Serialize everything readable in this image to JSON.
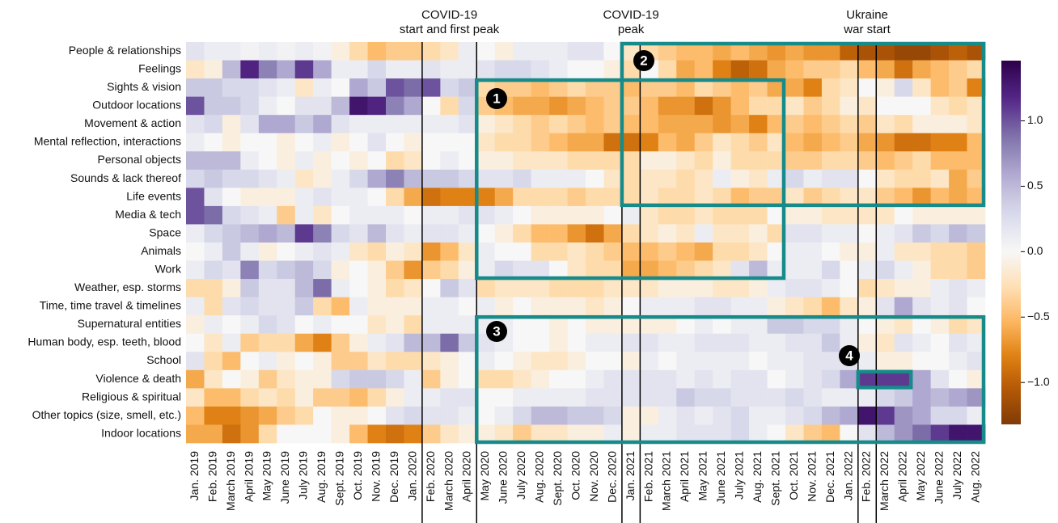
{
  "chart_data": {
    "type": "heatmap",
    "x_categories": [
      "Jan. 2019",
      "Feb. 2019",
      "March 2019",
      "April 2019",
      "May 2019",
      "June 2019",
      "July 2019",
      "Aug. 2019",
      "Sept. 2019",
      "Oct. 2019",
      "Nov. 2019",
      "Dec. 2019",
      "Jan. 2020",
      "Feb. 2020",
      "March 2020",
      "April 2020",
      "May 2020",
      "June 2020",
      "July 2020",
      "Aug. 2020",
      "Sept. 2020",
      "Oct. 2020",
      "Nov. 2020",
      "Dec. 2020",
      "Jan. 2021",
      "Feb. 2021",
      "March 2021",
      "April 2021",
      "May 2021",
      "June 2021",
      "July 2021",
      "Aug. 2021",
      "Sept. 2021",
      "Oct. 2021",
      "Nov. 2021",
      "Dec. 2021",
      "Jan. 2022",
      "Feb. 2022",
      "March 2022",
      "April 2022",
      "May 2022",
      "June 2022",
      "July 2022",
      "Aug. 2022"
    ],
    "y_categories": [
      "People & relationships",
      "Feelings",
      "Sights & vision",
      "Outdoor locations",
      "Movement & action",
      "Mental reflection, interactions",
      "Personal objects",
      "Sounds & lack thereof",
      "Life events",
      "Media & tech",
      "Space",
      "Animals",
      "Work",
      "Weather, esp. storms",
      "Time, time travel & timelines",
      "Supernatural entities",
      "Human body, esp. teeth, blood",
      "School",
      "Violence & death",
      "Religious & spiritual",
      "Other topics (size, smell, etc.)",
      "Indoor locations"
    ],
    "values": [
      [
        0.2,
        0.1,
        0.1,
        0.05,
        0.1,
        0.05,
        0.1,
        0.05,
        -0.1,
        -0.3,
        -0.5,
        -0.4,
        -0.4,
        -0.3,
        -0.2,
        0.1,
        0,
        -0.1,
        0.1,
        0.1,
        0.1,
        0.2,
        0.2,
        0,
        -0.2,
        -0.3,
        -0.4,
        -0.5,
        -0.5,
        -0.6,
        -0.5,
        -0.6,
        -0.7,
        -0.6,
        -0.7,
        -0.7,
        -1.0,
        -1.1,
        -1.1,
        -1.2,
        -1.2,
        -1.1,
        -1.0,
        -1.1
      ],
      [
        -0.2,
        -0.1,
        0.5,
        1.2,
        0.8,
        0.6,
        1.1,
        0.6,
        0.1,
        0.1,
        0.3,
        0.1,
        0.1,
        0.2,
        0.1,
        0.1,
        0.2,
        0.3,
        0.3,
        0.2,
        0.1,
        0,
        0,
        -0.1,
        -0.3,
        0,
        -0.3,
        -0.6,
        -0.5,
        -0.8,
        -1.0,
        -0.9,
        -0.6,
        -0.5,
        -0.4,
        -0.4,
        -0.3,
        -0.5,
        -0.6,
        -0.9,
        -0.6,
        -0.5,
        -0.4,
        -0.3
      ],
      [
        0.4,
        0.4,
        0.3,
        0.3,
        0.2,
        0.1,
        -0.2,
        0.1,
        0,
        0.6,
        0.4,
        1.0,
        0.9,
        1.0,
        0.3,
        0.4,
        -0.3,
        -0.4,
        -0.4,
        -0.5,
        -0.4,
        -0.3,
        -0.4,
        -0.4,
        -0.5,
        -0.4,
        -0.4,
        -0.5,
        -0.3,
        -0.4,
        -0.5,
        -0.4,
        -0.6,
        -0.6,
        -0.8,
        -0.3,
        -0.2,
        0,
        -0.1,
        0.3,
        -0.2,
        -0.5,
        -0.4,
        -0.8
      ],
      [
        1.0,
        0.4,
        0.4,
        0.3,
        0.1,
        0,
        0.2,
        0.2,
        0.5,
        1.3,
        1.2,
        0.8,
        0.6,
        0,
        -0.3,
        0.3,
        -0.4,
        -0.5,
        -0.6,
        -0.6,
        -0.7,
        -0.6,
        -0.5,
        -0.4,
        -0.4,
        -0.5,
        -0.7,
        -0.7,
        -0.9,
        -0.7,
        -0.5,
        -0.3,
        -0.3,
        -0.2,
        -0.4,
        -0.3,
        -0.1,
        -0.2,
        0,
        0,
        0,
        -0.2,
        -0.3,
        -0.2
      ],
      [
        0.2,
        0.3,
        -0.1,
        0.2,
        0.6,
        0.6,
        0.4,
        0.6,
        0.2,
        0.1,
        0.1,
        0.1,
        0.1,
        0.1,
        0.1,
        0.2,
        -0.1,
        -0.2,
        -0.3,
        -0.4,
        -0.3,
        -0.4,
        -0.5,
        -0.4,
        -0.5,
        -0.5,
        -0.6,
        -0.6,
        -0.6,
        -0.7,
        -0.6,
        -0.8,
        -0.5,
        -0.4,
        -0.5,
        -0.4,
        -0.3,
        -0.4,
        -0.2,
        -0.3,
        -0.1,
        -0.1,
        -0.1,
        -0.2
      ],
      [
        0.1,
        0,
        -0.1,
        0,
        0,
        -0.1,
        0,
        0.1,
        -0.1,
        0,
        0.2,
        0,
        -0.1,
        0,
        0,
        0,
        -0.2,
        -0.3,
        -0.3,
        -0.4,
        -0.5,
        -0.6,
        -0.6,
        -0.9,
        -0.9,
        -0.8,
        -0.5,
        -0.6,
        -0.4,
        -0.2,
        -0.3,
        -0.4,
        -0.2,
        -0.5,
        -0.6,
        -0.5,
        -0.4,
        -0.6,
        -0.7,
        -0.9,
        -0.9,
        -0.8,
        -0.8,
        -0.5
      ],
      [
        0.5,
        0.5,
        0.5,
        0.1,
        0,
        -0.1,
        0.1,
        -0.1,
        0,
        -0.1,
        0,
        -0.3,
        -0.2,
        0,
        0.1,
        0,
        -0.1,
        -0.1,
        -0.2,
        -0.2,
        -0.2,
        -0.3,
        -0.3,
        -0.3,
        -0.3,
        -0.1,
        -0.1,
        -0.2,
        -0.3,
        -0.1,
        -0.3,
        -0.3,
        -0.3,
        -0.4,
        -0.4,
        -0.3,
        -0.3,
        -0.4,
        -0.5,
        -0.4,
        -0.3,
        -0.5,
        -0.5,
        -0.5
      ],
      [
        0.3,
        0.4,
        0.3,
        0.3,
        0.2,
        0.1,
        -0.2,
        -0.1,
        0.1,
        0.3,
        0.6,
        0.8,
        0.5,
        0.4,
        0.4,
        0.3,
        0.2,
        0.2,
        0.3,
        0.1,
        0.1,
        0.1,
        0,
        -0.2,
        -0.3,
        -0.2,
        -0.2,
        -0.3,
        -0.2,
        0.1,
        -0.1,
        -0.2,
        0.1,
        0.3,
        0.1,
        0.2,
        0.2,
        0,
        -0.2,
        -0.3,
        -0.3,
        -0.2,
        -0.6,
        -0.4
      ],
      [
        1.0,
        0.2,
        0,
        -0.1,
        -0.1,
        -0.1,
        0.1,
        0.2,
        0.1,
        0.1,
        0,
        -0.3,
        -0.6,
        -0.9,
        -0.8,
        -0.8,
        -0.8,
        -0.6,
        -0.3,
        -0.3,
        -0.3,
        -0.4,
        -0.3,
        -0.3,
        -0.3,
        -0.2,
        -0.3,
        -0.3,
        -0.2,
        -0.3,
        -0.5,
        -0.4,
        -0.4,
        -0.2,
        -0.4,
        -0.3,
        -0.2,
        -0.2,
        -0.4,
        -0.5,
        -0.7,
        -0.5,
        -0.6,
        -0.5
      ],
      [
        1.0,
        0.9,
        0.3,
        0.2,
        0.1,
        -0.4,
        0.1,
        -0.2,
        0,
        0.1,
        0.1,
        0.1,
        0,
        0.1,
        0.1,
        0.2,
        0.2,
        0.1,
        0,
        -0.1,
        -0.1,
        -0.1,
        -0.1,
        0,
        0.1,
        -0.2,
        -0.3,
        -0.3,
        -0.2,
        -0.3,
        -0.3,
        -0.3,
        0,
        -0.1,
        -0.1,
        -0.2,
        -0.2,
        -0.2,
        -0.2,
        0,
        -0.1,
        -0.1,
        -0.1,
        -0.1
      ],
      [
        0.1,
        0.3,
        0.4,
        0.5,
        0.6,
        0.5,
        1.1,
        0.8,
        0.3,
        0.2,
        0.5,
        0.2,
        0.1,
        0.2,
        0.2,
        0.1,
        0,
        -0.1,
        -0.3,
        -0.5,
        -0.5,
        -0.7,
        -0.9,
        -0.6,
        -0.3,
        -0.2,
        -0.1,
        -0.2,
        0.1,
        -0.2,
        -0.2,
        -0.1,
        -0.3,
        0.2,
        0.2,
        0.1,
        0.1,
        0,
        0.1,
        0.2,
        0.4,
        0.3,
        0.5,
        0.4
      ],
      [
        0,
        0.1,
        0.4,
        0.1,
        -0.1,
        0,
        0.1,
        0.2,
        0.1,
        -0.2,
        -0.3,
        -0.1,
        -0.2,
        -0.7,
        -0.5,
        -0.2,
        0.1,
        0,
        0,
        -0.3,
        -0.3,
        -0.2,
        -0.3,
        -0.4,
        -0.5,
        -0.5,
        -0.4,
        -0.5,
        -0.6,
        -0.3,
        -0.3,
        -0.2,
        0,
        0.1,
        0.1,
        0,
        -0.1,
        -0.1,
        0.1,
        -0.2,
        -0.2,
        -0.3,
        -0.3,
        -0.4
      ],
      [
        0.1,
        0.3,
        0.2,
        0.8,
        0.3,
        0.4,
        0.5,
        0.3,
        -0.1,
        0,
        -0.1,
        -0.4,
        -0.7,
        -0.4,
        -0.3,
        -0.1,
        0.1,
        0.3,
        0.2,
        0.2,
        0,
        -0.2,
        -0.3,
        -0.3,
        -0.6,
        -0.6,
        -0.5,
        -0.4,
        -0.3,
        -0.2,
        0.2,
        0.5,
        0.1,
        0.1,
        0.1,
        0.3,
        0,
        0.1,
        0.3,
        0.1,
        -0.1,
        -0.3,
        -0.3,
        -0.4
      ],
      [
        -0.3,
        -0.3,
        -0.1,
        0.4,
        0.2,
        0.2,
        0.5,
        0.9,
        0.1,
        0,
        -0.1,
        -0.3,
        -0.2,
        0,
        0.4,
        0.2,
        -0.3,
        -0.2,
        -0.2,
        -0.2,
        -0.3,
        -0.3,
        -0.3,
        -0.2,
        -0.2,
        -0.2,
        -0.1,
        -0.1,
        -0.1,
        -0.2,
        -0.2,
        -0.1,
        0.1,
        0.2,
        0.2,
        0.1,
        0,
        -0.3,
        -0.2,
        -0.1,
        -0.1,
        0.1,
        0.2,
        0.1
      ],
      [
        0.1,
        -0.3,
        0.2,
        0.3,
        0.2,
        0.2,
        0.4,
        -0.3,
        -0.5,
        0.1,
        -0.1,
        -0.1,
        -0.1,
        0.1,
        0.1,
        0,
        0.1,
        -0.1,
        0,
        -0.1,
        -0.1,
        -0.1,
        -0.2,
        -0.1,
        0,
        0.1,
        0.1,
        0.1,
        0.2,
        0.2,
        0.1,
        0.1,
        -0.1,
        -0.2,
        -0.3,
        -0.5,
        -0.2,
        -0.1,
        0.2,
        0.6,
        0.2,
        0.1,
        0.2,
        0
      ],
      [
        -0.1,
        0.1,
        0,
        0.1,
        0.3,
        0.2,
        0,
        0.1,
        0,
        0,
        -0.2,
        -0.1,
        -0.3,
        0.1,
        0.1,
        0.1,
        0.1,
        0.1,
        0,
        0,
        -0.1,
        0,
        -0.1,
        -0.1,
        -0.1,
        -0.1,
        -0.1,
        0,
        0.1,
        0,
        0.1,
        0.1,
        0.4,
        0.4,
        0.3,
        0.3,
        0.1,
        0,
        -0.1,
        -0.2,
        0,
        -0.1,
        -0.3,
        -0.2
      ],
      [
        0,
        -0.2,
        0.1,
        -0.4,
        -0.3,
        -0.3,
        -0.6,
        -0.8,
        -0.4,
        -0.1,
        0.1,
        0.2,
        0.5,
        0.5,
        0.9,
        0.4,
        0.2,
        0.1,
        0,
        0,
        -0.1,
        0,
        0.1,
        0.1,
        0.2,
        0.2,
        0.1,
        0.1,
        0.2,
        0.2,
        0.2,
        0.1,
        0.1,
        0.2,
        0.2,
        0.4,
        0.1,
        -0.1,
        -0.2,
        0.2,
        0.1,
        0,
        0.2,
        0.1
      ],
      [
        0.2,
        -0.3,
        -0.5,
        0,
        0.1,
        -0.1,
        0,
        -0.1,
        -0.4,
        -0.4,
        -0.2,
        -0.3,
        -0.3,
        -0.2,
        -0.1,
        0,
        0.1,
        0,
        -0.1,
        -0.2,
        -0.2,
        -0.1,
        0,
        0,
        -0.1,
        0.1,
        0,
        0.1,
        0.1,
        0.1,
        0.1,
        0,
        0.1,
        0.1,
        0.2,
        0.2,
        0.2,
        0.1,
        -0.1,
        -0.1,
        0,
        0,
        0.1,
        0.2
      ],
      [
        -0.6,
        -0.2,
        0,
        -0.1,
        -0.4,
        -0.2,
        -0.1,
        -0.1,
        0.3,
        0.4,
        0.4,
        0.3,
        0.1,
        -0.4,
        -0.1,
        0,
        -0.3,
        -0.3,
        -0.2,
        -0.1,
        0,
        0,
        0.1,
        0.2,
        0.2,
        0.2,
        0.2,
        0.1,
        0.2,
        0.1,
        0.2,
        0.2,
        0,
        0.1,
        0.2,
        0.3,
        0.6,
        1.1,
        1.1,
        1.1,
        0.6,
        0.2,
        0,
        -0.1
      ],
      [
        -0.2,
        -0.5,
        -0.5,
        -0.3,
        -0.2,
        -0.3,
        -0.1,
        -0.4,
        -0.4,
        -0.5,
        -0.3,
        -0.1,
        0.1,
        0.1,
        0.2,
        0.2,
        0,
        0,
        0.1,
        0.1,
        0.1,
        0.1,
        0.2,
        0.2,
        0.2,
        0.2,
        0.2,
        0.4,
        0.3,
        0.3,
        0.2,
        0.2,
        0.2,
        0.3,
        0.2,
        0.1,
        0.1,
        0.1,
        0.3,
        0.4,
        0.6,
        0.5,
        0.6,
        0.7
      ],
      [
        -0.5,
        -0.8,
        -0.8,
        -0.7,
        -0.6,
        -0.4,
        -0.3,
        0,
        -0.1,
        -0.1,
        0,
        0.2,
        0.3,
        0.2,
        0.2,
        0.1,
        0,
        0.1,
        0.3,
        0.5,
        0.5,
        0.4,
        0.4,
        0.3,
        -0.1,
        -0.1,
        0.1,
        0.2,
        0.1,
        0.2,
        0.3,
        0.1,
        0.1,
        0.2,
        0.3,
        0.5,
        0.6,
        1.3,
        1.1,
        0.7,
        0.6,
        0.3,
        0.3,
        0.1
      ],
      [
        -0.6,
        -0.6,
        -0.9,
        -0.7,
        -0.3,
        0,
        0,
        0,
        -0.1,
        -0.5,
        -0.8,
        -0.9,
        -0.8,
        -0.4,
        -0.2,
        -0.1,
        -0.1,
        -0.2,
        -0.4,
        -0.2,
        -0.2,
        -0.1,
        -0.1,
        0.1,
        -0.1,
        0.1,
        0.1,
        0.2,
        0.2,
        0.2,
        0.3,
        0.1,
        0,
        -0.2,
        -0.4,
        -0.5,
        0,
        0.2,
        0.5,
        0.7,
        0.9,
        1.1,
        1.3,
        1.3
      ]
    ],
    "zlim": [
      -1.32,
      1.46
    ],
    "zticks": [
      {
        "value": -1,
        "label": "−1.0"
      },
      {
        "value": -0.5,
        "label": "−0.5"
      },
      {
        "value": 0,
        "label": "0.0"
      },
      {
        "value": 0.5,
        "label": "0.5"
      },
      {
        "value": 1,
        "label": "1.0"
      }
    ],
    "colors": {
      "negative": [
        "#f7f7f7",
        "#fee0b6",
        "#fdb863",
        "#e08214",
        "#b35806",
        "#7f3b08"
      ],
      "positive": [
        "#f7f7f7",
        "#d8daeb",
        "#b2abd2",
        "#8073ac",
        "#542788",
        "#2d004b"
      ]
    },
    "annotations": [
      [
        "COVID-19",
        "start and first peak"
      ],
      [
        "COVID-19",
        "peak"
      ],
      [
        "Ukraine",
        "war start"
      ]
    ],
    "markers": [
      "1",
      "2",
      "3",
      "4"
    ]
  }
}
